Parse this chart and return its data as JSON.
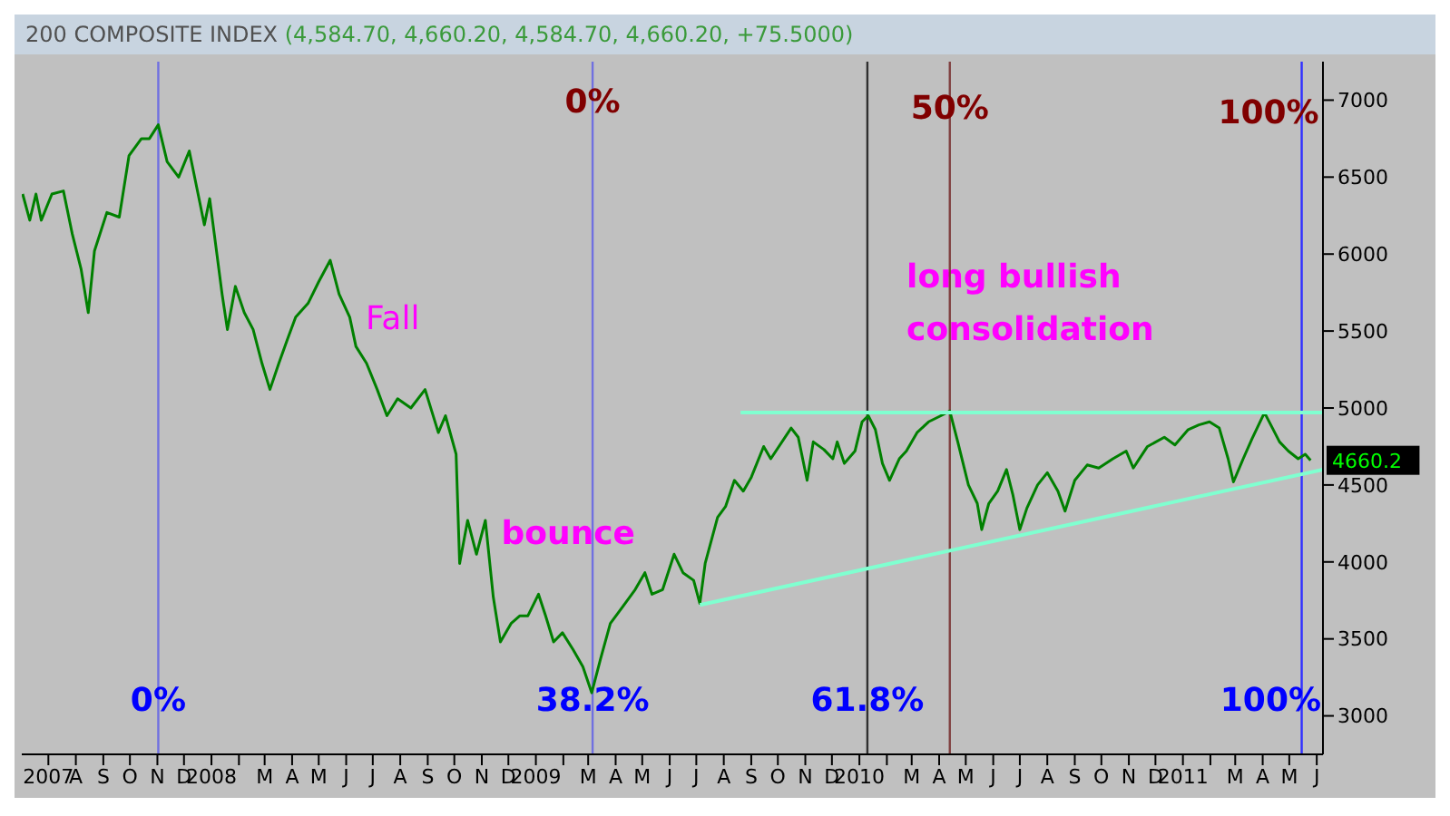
{
  "chart_data": {
    "type": "line",
    "title": "200 COMPOSITE INDEX",
    "subtitle": "(4,584.70, 4,660.20, 4,584.70, 4,660.20, +75.5000)",
    "xlim": [
      "2007-06-01",
      "2011-06-08"
    ],
    "xticks": [
      {
        "value": "2007-07-01",
        "label": "2007"
      },
      {
        "value": "2007-08-01",
        "label": "A"
      },
      {
        "value": "2007-09-01",
        "label": "S"
      },
      {
        "value": "2007-10-01",
        "label": "O"
      },
      {
        "value": "2007-11-01",
        "label": "N"
      },
      {
        "value": "2007-12-01",
        "label": "D"
      },
      {
        "value": "2008-01-01",
        "label": "2008"
      },
      {
        "value": "2008-02-01",
        "label": null
      },
      {
        "value": "2008-03-01",
        "label": "M"
      },
      {
        "value": "2008-04-01",
        "label": "A"
      },
      {
        "value": "2008-05-01",
        "label": "M"
      },
      {
        "value": "2008-06-01",
        "label": "J"
      },
      {
        "value": "2008-07-01",
        "label": "J"
      },
      {
        "value": "2008-08-01",
        "label": "A"
      },
      {
        "value": "2008-09-01",
        "label": "S"
      },
      {
        "value": "2008-10-01",
        "label": "O"
      },
      {
        "value": "2008-11-01",
        "label": "N"
      },
      {
        "value": "2008-12-01",
        "label": "D"
      },
      {
        "value": "2009-01-01",
        "label": "2009"
      },
      {
        "value": "2009-02-01",
        "label": null
      },
      {
        "value": "2009-03-01",
        "label": "M"
      },
      {
        "value": "2009-04-01",
        "label": "A"
      },
      {
        "value": "2009-05-01",
        "label": "M"
      },
      {
        "value": "2009-06-01",
        "label": "J"
      },
      {
        "value": "2009-07-01",
        "label": "J"
      },
      {
        "value": "2009-08-01",
        "label": "A"
      },
      {
        "value": "2009-09-01",
        "label": "S"
      },
      {
        "value": "2009-10-01",
        "label": "O"
      },
      {
        "value": "2009-11-01",
        "label": "N"
      },
      {
        "value": "2009-12-01",
        "label": "D"
      },
      {
        "value": "2010-01-01",
        "label": "2010"
      },
      {
        "value": "2010-02-01",
        "label": null
      },
      {
        "value": "2010-03-01",
        "label": "M"
      },
      {
        "value": "2010-04-01",
        "label": "A"
      },
      {
        "value": "2010-05-01",
        "label": "M"
      },
      {
        "value": "2010-06-01",
        "label": "J"
      },
      {
        "value": "2010-07-01",
        "label": "J"
      },
      {
        "value": "2010-08-01",
        "label": "A"
      },
      {
        "value": "2010-09-01",
        "label": "S"
      },
      {
        "value": "2010-10-01",
        "label": "O"
      },
      {
        "value": "2010-11-01",
        "label": "N"
      },
      {
        "value": "2010-12-01",
        "label": "D"
      },
      {
        "value": "2011-01-01",
        "label": "2011"
      },
      {
        "value": "2011-02-01",
        "label": null
      },
      {
        "value": "2011-03-01",
        "label": "M"
      },
      {
        "value": "2011-04-01",
        "label": "A"
      },
      {
        "value": "2011-05-01",
        "label": "M"
      },
      {
        "value": "2011-06-01",
        "label": "J"
      }
    ],
    "ylim": [
      2750,
      7250
    ],
    "yticks": [
      3000,
      3500,
      4000,
      4500,
      5000,
      5500,
      6000,
      6500,
      7000
    ],
    "series": [
      {
        "color": "#008000",
        "x": [
          "2007-06-02",
          "2007-06-10",
          "2007-06-17",
          "2007-06-23",
          "2007-07-05",
          "2007-07-18",
          "2007-07-28",
          "2007-08-07",
          "2007-08-15",
          "2007-08-22",
          "2007-09-05",
          "2007-09-19",
          "2007-09-30",
          "2007-10-14",
          "2007-10-23",
          "2007-11-02",
          "2007-11-12",
          "2007-11-25",
          "2007-12-07",
          "2007-12-24",
          "2007-12-30",
          "2008-01-13",
          "2008-01-19",
          "2008-01-28",
          "2008-02-07",
          "2008-02-17",
          "2008-02-27",
          "2008-03-07",
          "2008-03-17",
          "2008-03-27",
          "2008-04-05",
          "2008-04-19",
          "2008-05-01",
          "2008-05-14",
          "2008-05-24",
          "2008-06-05",
          "2008-06-12",
          "2008-06-24",
          "2008-07-06",
          "2008-07-17",
          "2008-07-29",
          "2008-08-13",
          "2008-08-29",
          "2008-09-13",
          "2008-09-21",
          "2008-10-03",
          "2008-10-07",
          "2008-10-16",
          "2008-10-26",
          "2008-11-05",
          "2008-11-14",
          "2008-11-22",
          "2008-12-04",
          "2008-12-14",
          "2008-12-23",
          "2009-01-04",
          "2009-01-12",
          "2009-01-21",
          "2009-01-31",
          "2009-02-12",
          "2009-02-23",
          "2009-03-05",
          "2009-03-15",
          "2009-03-26",
          "2009-04-09",
          "2009-04-23",
          "2009-05-04",
          "2009-05-12",
          "2009-05-24",
          "2009-06-06",
          "2009-06-16",
          "2009-06-28",
          "2009-07-05",
          "2009-07-11",
          "2009-07-25",
          "2009-08-03",
          "2009-08-13",
          "2009-08-23",
          "2009-09-01",
          "2009-09-15",
          "2009-09-23",
          "2009-10-16",
          "2009-10-24",
          "2009-11-03",
          "2009-11-10",
          "2009-11-22",
          "2009-12-02",
          "2009-12-07",
          "2009-12-15",
          "2009-12-27",
          "2010-01-04",
          "2010-01-11",
          "2010-01-19",
          "2010-01-27",
          "2010-02-04",
          "2010-02-15",
          "2010-02-23",
          "2010-03-07",
          "2010-03-20",
          "2010-04-03",
          "2010-04-13",
          "2010-04-22",
          "2010-05-04",
          "2010-05-14",
          "2010-05-19",
          "2010-05-27",
          "2010-06-06",
          "2010-06-16",
          "2010-06-23",
          "2010-07-01",
          "2010-07-09",
          "2010-07-21",
          "2010-08-01",
          "2010-08-13",
          "2010-08-21",
          "2010-09-01",
          "2010-09-15",
          "2010-09-28",
          "2010-10-14",
          "2010-10-29",
          "2010-11-06",
          "2010-11-22",
          "2010-12-11",
          "2010-12-23",
          "2011-01-07",
          "2011-01-19",
          "2011-01-31",
          "2011-02-11",
          "2011-02-21",
          "2011-02-27",
          "2011-03-10",
          "2011-03-20",
          "2011-04-03",
          "2011-04-12",
          "2011-04-20",
          "2011-04-30",
          "2011-05-11",
          "2011-05-19",
          "2011-05-25"
        ],
        "values": [
          6390,
          6220,
          6390,
          6220,
          6390,
          6410,
          6130,
          5900,
          5620,
          6020,
          6270,
          6240,
          6640,
          6750,
          6750,
          6840,
          6600,
          6500,
          6670,
          6190,
          6360,
          5740,
          5510,
          5790,
          5620,
          5510,
          5290,
          5120,
          5290,
          5450,
          5590,
          5680,
          5820,
          5960,
          5740,
          5590,
          5400,
          5290,
          5120,
          4950,
          5060,
          5000,
          5120,
          4840,
          4950,
          4700,
          3990,
          4270,
          4050,
          4270,
          3770,
          3480,
          3600,
          3650,
          3650,
          3790,
          3650,
          3480,
          3540,
          3430,
          3320,
          3150,
          3370,
          3600,
          3710,
          3820,
          3930,
          3790,
          3820,
          4050,
          3930,
          3880,
          3730,
          3990,
          4290,
          4360,
          4530,
          4460,
          4550,
          4750,
          4670,
          4870,
          4810,
          4530,
          4780,
          4730,
          4670,
          4780,
          4640,
          4720,
          4910,
          4950,
          4860,
          4640,
          4530,
          4670,
          4720,
          4840,
          4910,
          4950,
          4980,
          4780,
          4500,
          4380,
          4210,
          4380,
          4460,
          4600,
          4440,
          4210,
          4350,
          4500,
          4580,
          4460,
          4330,
          4530,
          4630,
          4610,
          4670,
          4720,
          4610,
          4750,
          4810,
          4760,
          4860,
          4890,
          4910,
          4870,
          4670,
          4520,
          4670,
          4800,
          4970,
          4870,
          4780,
          4720,
          4670,
          4700,
          4660.2
        ],
        "value_labels": [
          null,
          null,
          null,
          null,
          null,
          null,
          null,
          null,
          null,
          null,
          null,
          null,
          null,
          null,
          null,
          null,
          null,
          null,
          null,
          null,
          null,
          null,
          null,
          null,
          null,
          null,
          null,
          null,
          null,
          null,
          null,
          null,
          null,
          null,
          null,
          null,
          null,
          null,
          null,
          null,
          null,
          null,
          null,
          null,
          null,
          null,
          null,
          null,
          null,
          null,
          null,
          null,
          null,
          null,
          null,
          null,
          null,
          null,
          null,
          null,
          null,
          null,
          null,
          null,
          null,
          null,
          null,
          null,
          null,
          null,
          null,
          null,
          null,
          null,
          null,
          null,
          null,
          null,
          null,
          null,
          null,
          null,
          null,
          null,
          null,
          null,
          null,
          null,
          null,
          null,
          null,
          null,
          null,
          null,
          null,
          null,
          null,
          null,
          null,
          null,
          null,
          null,
          null,
          null,
          null,
          null,
          null,
          null,
          null,
          null,
          null,
          null,
          null,
          null,
          null,
          null,
          null,
          null,
          null,
          null,
          null,
          null,
          null,
          null,
          null,
          null,
          null,
          null,
          null,
          null,
          null,
          null,
          null,
          null,
          null,
          null,
          null,
          null,
          "4660.2"
        ]
      },
      {
        "color": "#80ffd0",
        "x": [
          "2009-08-20",
          "2011-06-08"
        ],
        "values": [
          4970,
          4970
        ]
      },
      {
        "color": "#80ffd0",
        "x": [
          "2009-07-05",
          "2011-06-08"
        ],
        "values": [
          3720,
          4600
        ]
      }
    ],
    "ref_lines": [
      {
        "axis": "x",
        "value": "2007-11-02",
        "label": "0%",
        "color": "#7070e0"
      },
      {
        "axis": "x",
        "value": "2009-03-06",
        "label": "38.2%",
        "color": "#7070e0"
      },
      {
        "axis": "x",
        "value": "2010-01-10",
        "label": "61.8%",
        "color": "#303030"
      },
      {
        "axis": "x",
        "value": "2010-04-13",
        "label": null,
        "color": "#804040"
      },
      {
        "axis": "x",
        "value": "2011-05-15",
        "label": "100%",
        "color": "#3030ff"
      }
    ],
    "annotations": [
      {
        "text": "0%",
        "x": "2009-03-06",
        "y": 6990
      },
      {
        "text": "50%",
        "x": "2010-04-13",
        "y": 6950
      },
      {
        "text": "100%",
        "x": "2011-05-15",
        "y": 6920
      },
      "Fall",
      "bounce",
      "long bullish consolidation"
    ],
    "grid": false,
    "legend": false
  }
}
